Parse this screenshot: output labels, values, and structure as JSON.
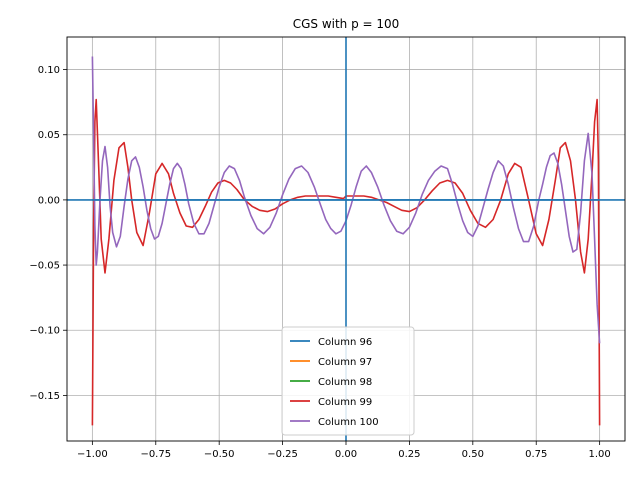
{
  "chart_data": {
    "type": "line",
    "title": "CGS with p = 100",
    "xlabel": "",
    "ylabel": "",
    "xlim": [
      -1.1,
      1.1
    ],
    "ylim": [
      -0.185,
      0.125
    ],
    "grid": true,
    "legend_position": "lower center",
    "xticks": [
      -1.0,
      -0.75,
      -0.5,
      -0.25,
      0.0,
      0.25,
      0.5,
      0.75,
      1.0
    ],
    "xtick_labels": [
      "−1.00",
      "−0.75",
      "−0.50",
      "−0.25",
      "0.00",
      "0.25",
      "0.50",
      "0.75",
      "1.00"
    ],
    "yticks": [
      0.1,
      0.05,
      0.0,
      -0.05,
      -0.1,
      -0.15
    ],
    "ytick_labels": [
      "0.10",
      "0.05",
      "0.00",
      "−0.05",
      "−0.10",
      "−0.15"
    ],
    "reference_lines": {
      "x_zero": 0.0,
      "y_zero": 0.0,
      "color": "#1f77b4"
    },
    "series": [
      {
        "name": "Column 96",
        "color": "#1f77b4",
        "x": [
          -1.0,
          1.0
        ],
        "y": [
          0.0,
          0.0
        ]
      },
      {
        "name": "Column 97",
        "color": "#ff7f0e",
        "x": [],
        "y": []
      },
      {
        "name": "Column 98",
        "color": "#2ca02c",
        "x": [],
        "y": []
      },
      {
        "name": "Column 99",
        "color": "#d62728",
        "x": [
          -1.0,
          -0.995,
          -0.99,
          -0.985,
          -0.975,
          -0.965,
          -0.95,
          -0.935,
          -0.915,
          -0.895,
          -0.875,
          -0.86,
          -0.845,
          -0.825,
          -0.8,
          -0.775,
          -0.75,
          -0.725,
          -0.7,
          -0.68,
          -0.655,
          -0.63,
          -0.605,
          -0.58,
          -0.555,
          -0.53,
          -0.505,
          -0.48,
          -0.455,
          -0.43,
          -0.4,
          -0.37,
          -0.34,
          -0.31,
          -0.28,
          -0.25,
          -0.22,
          -0.19,
          -0.16,
          -0.13,
          -0.1,
          -0.07,
          -0.04,
          -0.01,
          0.0,
          0.04,
          0.07,
          0.1,
          0.13,
          0.16,
          0.19,
          0.22,
          0.25,
          0.28,
          0.31,
          0.34,
          0.37,
          0.4,
          0.43,
          0.46,
          0.49,
          0.52,
          0.55,
          0.58,
          0.61,
          0.64,
          0.665,
          0.69,
          0.72,
          0.75,
          0.775,
          0.8,
          0.825,
          0.845,
          0.865,
          0.885,
          0.905,
          0.925,
          0.94,
          0.955,
          0.97,
          0.98,
          0.99,
          0.995,
          1.0
        ],
        "y": [
          -0.173,
          -0.02,
          0.06,
          0.077,
          0.025,
          -0.03,
          -0.056,
          -0.03,
          0.015,
          0.04,
          0.044,
          0.025,
          0.0,
          -0.025,
          -0.035,
          -0.01,
          0.02,
          0.028,
          0.02,
          0.005,
          -0.01,
          -0.02,
          -0.021,
          -0.015,
          -0.005,
          0.006,
          0.013,
          0.015,
          0.013,
          0.008,
          0.0,
          -0.005,
          -0.008,
          -0.009,
          -0.007,
          -0.003,
          0.0,
          0.002,
          0.003,
          0.003,
          0.003,
          0.003,
          0.002,
          0.001,
          0.003,
          0.003,
          0.003,
          0.002,
          0.0,
          -0.002,
          -0.005,
          -0.008,
          -0.009,
          -0.006,
          0.0,
          0.007,
          0.013,
          0.015,
          0.013,
          0.005,
          -0.008,
          -0.018,
          -0.021,
          -0.015,
          0.0,
          0.02,
          0.028,
          0.025,
          0.0,
          -0.026,
          -0.035,
          -0.015,
          0.015,
          0.04,
          0.044,
          0.03,
          0.0,
          -0.04,
          -0.056,
          -0.03,
          0.02,
          0.06,
          0.077,
          0.03,
          -0.173
        ]
      },
      {
        "name": "Column 100",
        "color": "#9467bd",
        "x": [
          -1.0,
          -0.995,
          -0.99,
          -0.985,
          -0.98,
          -0.97,
          -0.96,
          -0.95,
          -0.94,
          -0.93,
          -0.92,
          -0.905,
          -0.89,
          -0.875,
          -0.86,
          -0.845,
          -0.83,
          -0.815,
          -0.8,
          -0.785,
          -0.77,
          -0.755,
          -0.74,
          -0.725,
          -0.71,
          -0.695,
          -0.68,
          -0.665,
          -0.65,
          -0.635,
          -0.62,
          -0.6,
          -0.58,
          -0.56,
          -0.54,
          -0.52,
          -0.5,
          -0.48,
          -0.46,
          -0.44,
          -0.42,
          -0.4,
          -0.375,
          -0.35,
          -0.325,
          -0.3,
          -0.275,
          -0.25,
          -0.225,
          -0.2,
          -0.175,
          -0.15,
          -0.125,
          -0.1,
          -0.08,
          -0.06,
          -0.04,
          -0.02,
          0.0,
          0.02,
          0.04,
          0.06,
          0.08,
          0.1,
          0.125,
          0.15,
          0.175,
          0.2,
          0.225,
          0.25,
          0.275,
          0.3,
          0.325,
          0.35,
          0.375,
          0.4,
          0.42,
          0.44,
          0.46,
          0.48,
          0.5,
          0.52,
          0.54,
          0.56,
          0.58,
          0.6,
          0.62,
          0.64,
          0.66,
          0.68,
          0.7,
          0.72,
          0.74,
          0.76,
          0.775,
          0.79,
          0.805,
          0.82,
          0.835,
          0.85,
          0.865,
          0.88,
          0.895,
          0.91,
          0.925,
          0.94,
          0.955,
          0.97,
          0.98,
          0.99,
          1.0
        ],
        "y": [
          0.11,
          0.05,
          -0.02,
          -0.05,
          -0.04,
          0.0,
          0.03,
          0.041,
          0.025,
          -0.005,
          -0.025,
          -0.036,
          -0.028,
          -0.005,
          0.016,
          0.03,
          0.033,
          0.025,
          0.01,
          -0.008,
          -0.022,
          -0.03,
          -0.028,
          -0.018,
          -0.003,
          0.012,
          0.024,
          0.028,
          0.024,
          0.012,
          -0.003,
          -0.018,
          -0.026,
          -0.026,
          -0.018,
          -0.004,
          0.01,
          0.021,
          0.026,
          0.024,
          0.015,
          0.002,
          -0.012,
          -0.022,
          -0.026,
          -0.021,
          -0.01,
          0.004,
          0.016,
          0.024,
          0.026,
          0.021,
          0.01,
          -0.004,
          -0.015,
          -0.022,
          -0.026,
          -0.024,
          -0.016,
          -0.004,
          0.01,
          0.022,
          0.026,
          0.021,
          0.01,
          -0.004,
          -0.016,
          -0.024,
          -0.026,
          -0.021,
          -0.01,
          0.004,
          0.015,
          0.022,
          0.026,
          0.024,
          0.012,
          -0.003,
          -0.016,
          -0.025,
          -0.028,
          -0.02,
          -0.006,
          0.008,
          0.021,
          0.03,
          0.026,
          0.012,
          -0.006,
          -0.022,
          -0.032,
          -0.032,
          -0.02,
          0.0,
          0.012,
          0.025,
          0.034,
          0.036,
          0.028,
          0.012,
          -0.008,
          -0.028,
          -0.04,
          -0.038,
          -0.01,
          0.03,
          0.051,
          0.02,
          -0.03,
          -0.08,
          -0.11
        ]
      }
    ]
  }
}
